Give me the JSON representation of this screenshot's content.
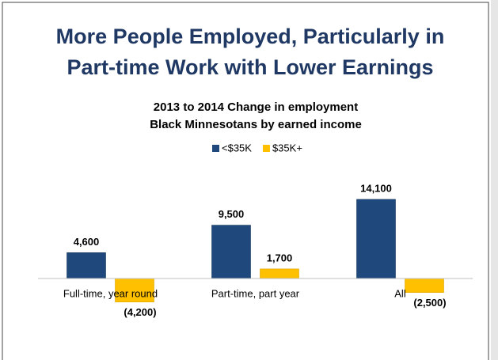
{
  "chart_data": {
    "type": "bar",
    "slide_title": [
      "More People Employed, Particularly in",
      "Part-time Work with Lower Earnings"
    ],
    "title": [
      "2013 to 2014 Change in employment",
      "Black Minnesotans by earned income"
    ],
    "categories": [
      "Full-time, year round",
      "Part-time, part year",
      "All"
    ],
    "series": [
      {
        "name": "<$35K",
        "color": "#1f497d",
        "values": [
          4600,
          9500,
          14100
        ],
        "value_labels": [
          "4,600",
          "9,500",
          "14,100"
        ]
      },
      {
        "name": "$35K+",
        "color": "#ffc000",
        "values": [
          -4200,
          1700,
          -2500
        ],
        "value_labels": [
          "(4,200)",
          "1,700",
          "(2,500)"
        ]
      }
    ],
    "ylim": [
      -6000,
      16000
    ],
    "legend": "top"
  }
}
